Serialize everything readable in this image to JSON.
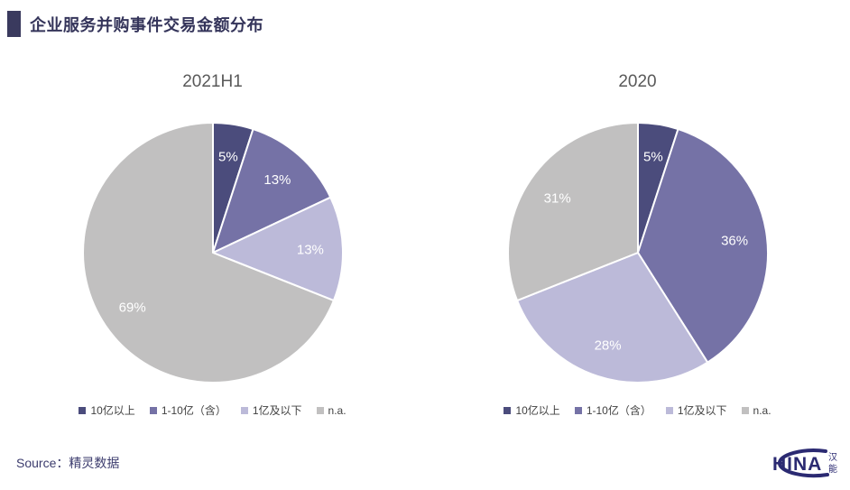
{
  "page": {
    "title": "企业服务并购事件交易金额分布",
    "source": "Source：精灵数据",
    "accent_color": "#3a3a5e",
    "logo": {
      "latin": "HINA",
      "cn_top": "汉",
      "cn_bottom": "能",
      "color": "#2b2a72"
    }
  },
  "chart_data": [
    {
      "type": "pie",
      "title": "2021H1",
      "categories": [
        "10亿以上",
        "1-10亿（含）",
        "1亿及以下",
        "n.a."
      ],
      "values": [
        5,
        13,
        13,
        69
      ],
      "display_labels": [
        "5%",
        "13%",
        "13%",
        "69%"
      ],
      "colors": [
        "#4b4c7c",
        "#7572a6",
        "#bcbad9",
        "#c1c0c0"
      ],
      "unit": "%",
      "start_angle_deg": 0,
      "direction": "clockwise",
      "legend_position": "bottom",
      "slice_label_color": "#ffffff"
    },
    {
      "type": "pie",
      "title": "2020",
      "categories": [
        "10亿以上",
        "1-10亿（含）",
        "1亿及以下",
        "n.a."
      ],
      "values": [
        5,
        36,
        28,
        31
      ],
      "display_labels": [
        "5%",
        "36%",
        "28%",
        "31%"
      ],
      "colors": [
        "#4b4c7c",
        "#7572a6",
        "#bcbad9",
        "#c1c0c0"
      ],
      "unit": "%",
      "start_angle_deg": 0,
      "direction": "clockwise",
      "legend_position": "bottom",
      "slice_label_color": "#ffffff"
    }
  ]
}
